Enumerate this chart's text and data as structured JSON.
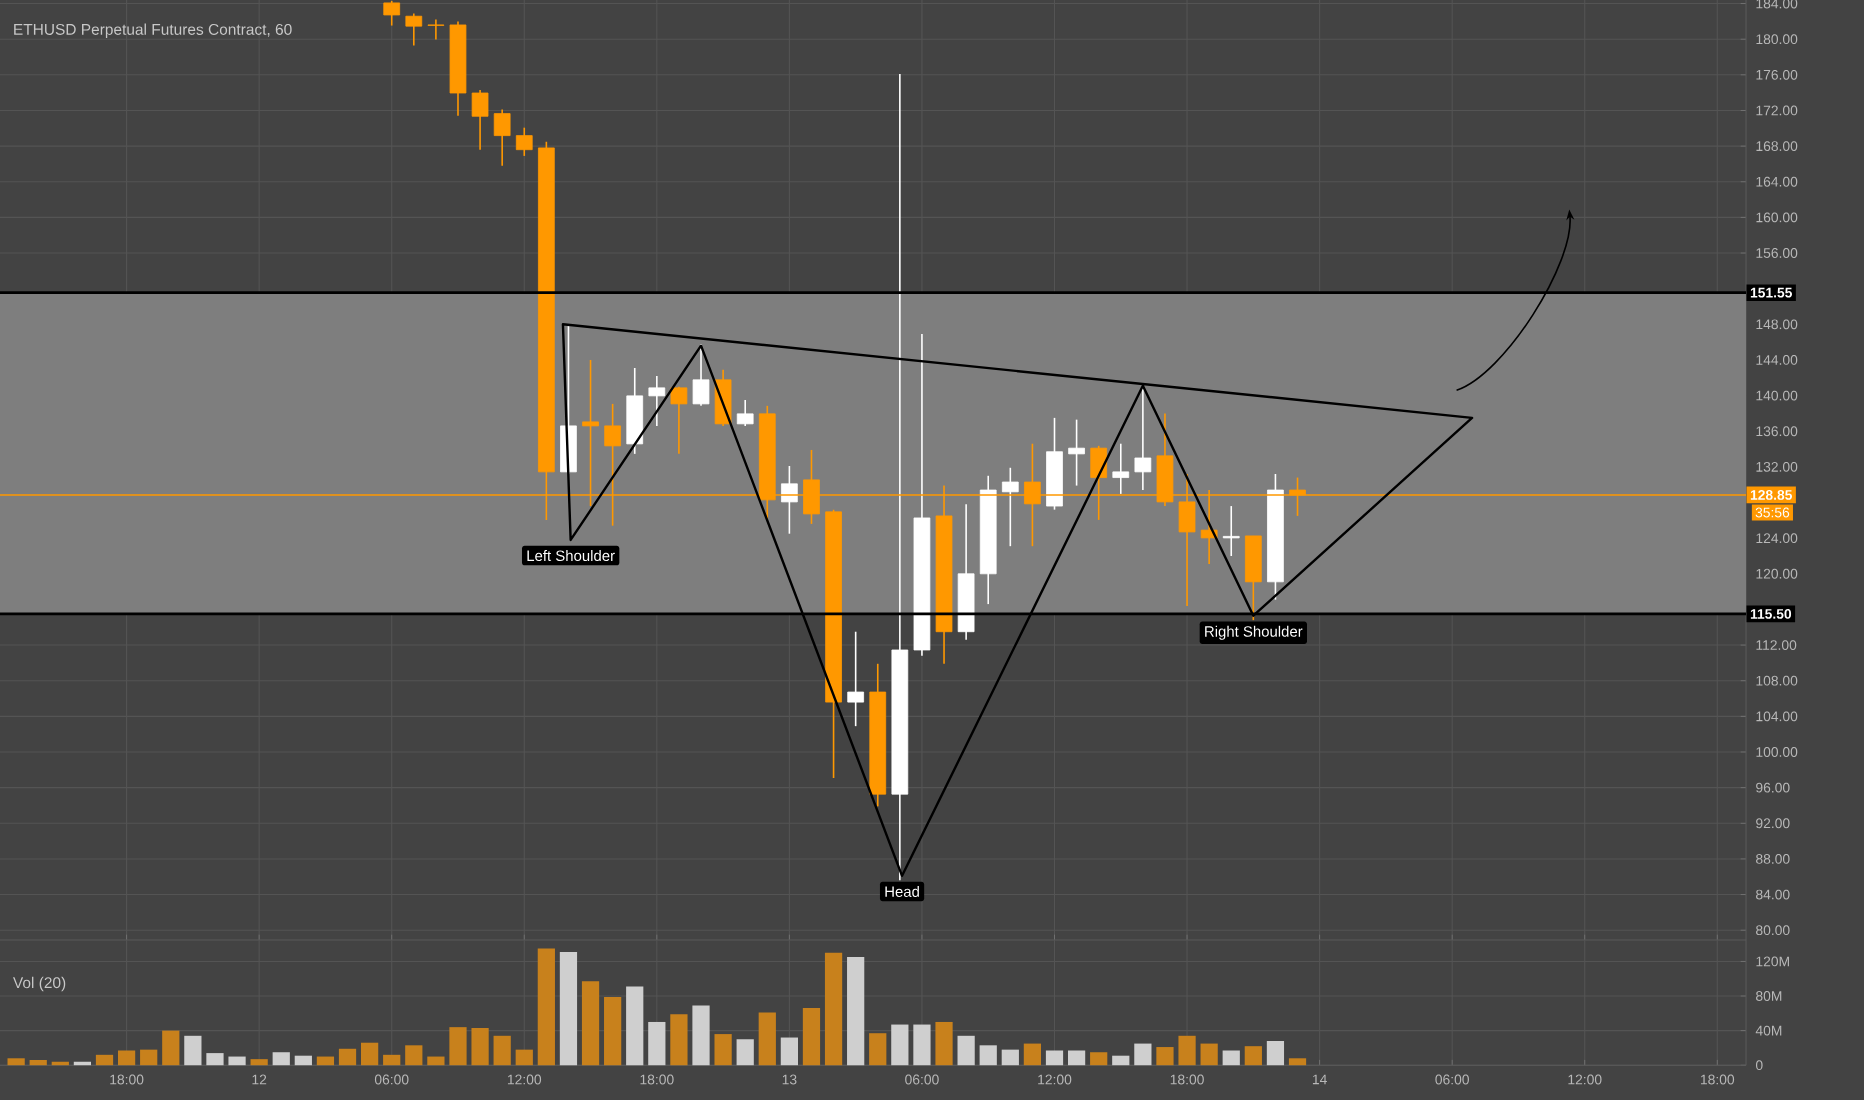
{
  "chart_data": [
    {
      "type": "candlestick",
      "title": "ETHUSD Perpetual Futures Contract, 60",
      "tick_labels": "y",
      "grid": true,
      "categories": [
        null,
        null,
        null,
        null,
        null,
        null,
        null,
        null,
        null,
        null,
        null,
        null,
        null,
        null,
        null,
        null,
        null,
        null,
        null,
        null,
        null,
        null,
        null,
        null,
        null,
        null,
        null,
        null,
        null,
        null,
        null,
        null,
        null,
        null,
        null,
        null,
        null,
        null,
        null,
        null,
        null,
        null,
        null,
        null,
        null,
        null,
        null,
        null,
        null,
        null,
        null,
        null,
        null,
        null,
        null,
        null,
        null,
        null,
        null,
        null,
        null,
        null,
        null,
        null,
        null,
        null,
        null,
        null,
        null,
        null,
        null,
        null,
        null,
        null,
        null,
        null,
        null,
        null,
        null
      ],
      "ohlc": [
        null,
        null,
        null,
        null,
        null,
        null,
        null,
        null,
        null,
        null,
        null,
        null,
        null,
        null,
        null,
        null,
        null,
        [
          184.07,
          184.3,
          181.53,
          182.72
        ],
        [
          182.58,
          182.88,
          179.28,
          181.46
        ],
        [
          181.6,
          182.2,
          179.96,
          181.55
        ],
        [
          181.6,
          181.98,
          171.42,
          173.96
        ],
        [
          173.96,
          174.3,
          167.6,
          171.35
        ],
        [
          171.65,
          172.1,
          165.8,
          169.18
        ],
        [
          169.18,
          170.07,
          166.9,
          167.6
        ],
        [
          167.8,
          168.5,
          126.05,
          131.44
        ],
        [
          131.44,
          147.8,
          131.2,
          136.6
        ],
        [
          137.05,
          144.0,
          127.6,
          136.6
        ],
        [
          136.6,
          139.07,
          125.4,
          134.36
        ],
        [
          134.58,
          143.1,
          133.46,
          139.97
        ],
        [
          139.97,
          142.2,
          136.6,
          140.87
        ],
        [
          140.87,
          141.0,
          133.46,
          139.07
        ],
        [
          139.07,
          145.8,
          138.85,
          141.77
        ],
        [
          141.77,
          142.9,
          136.6,
          136.83
        ],
        [
          136.83,
          139.5,
          136.6,
          137.95
        ],
        [
          137.95,
          138.85,
          126.05,
          128.3
        ],
        [
          128.07,
          132.1,
          124.5,
          130.1
        ],
        [
          130.54,
          133.9,
          125.6,
          126.72
        ],
        [
          126.95,
          127.2,
          97.07,
          105.6
        ],
        [
          105.6,
          113.5,
          102.9,
          106.73
        ],
        [
          106.73,
          109.9,
          93.9,
          95.27
        ],
        [
          95.27,
          176.1,
          85.6,
          111.45
        ],
        [
          111.45,
          146.9,
          110.8,
          126.27
        ],
        [
          126.5,
          129.9,
          109.9,
          113.5
        ],
        [
          113.5,
          127.8,
          112.6,
          120.0
        ],
        [
          120.0,
          131.0,
          116.6,
          129.4
        ],
        [
          129.2,
          131.9,
          123.1,
          130.3
        ],
        [
          130.3,
          134.6,
          123.1,
          127.85
        ],
        [
          127.6,
          137.5,
          127.2,
          133.7
        ],
        [
          133.46,
          137.3,
          129.9,
          134.1
        ],
        [
          134.1,
          134.36,
          126.05,
          130.8
        ],
        [
          130.8,
          134.6,
          128.97,
          131.44
        ],
        [
          131.44,
          141.1,
          129.4,
          133.0
        ],
        [
          133.24,
          138.0,
          127.6,
          128.07
        ],
        [
          128.07,
          131.2,
          116.4,
          124.7
        ],
        [
          124.9,
          129.4,
          121.1,
          124.03
        ],
        [
          124.03,
          127.6,
          122.0,
          124.2
        ],
        [
          124.25,
          124.25,
          114.8,
          119.1
        ],
        [
          119.1,
          131.2,
          117.1,
          129.4
        ],
        [
          129.4,
          130.8,
          126.5,
          128.85
        ],
        null,
        null,
        null,
        null,
        null,
        null,
        null,
        null,
        null,
        null,
        null,
        null,
        null,
        null,
        null,
        null,
        null,
        null,
        null,
        null
      ],
      "colors": [
        null,
        null,
        null,
        null,
        null,
        null,
        null,
        null,
        null,
        null,
        null,
        null,
        null,
        null,
        null,
        null,
        null,
        "#ff9800",
        "#ff9800",
        "#ff9800",
        "#ff9800",
        "#ff9800",
        "#ff9800",
        "#ff9800",
        "#ff9800",
        "#ffffff",
        "#ff9800",
        "#ff9800",
        "#ffffff",
        "#ffffff",
        "#ff9800",
        "#ffffff",
        "#ff9800",
        "#ffffff",
        "#ff9800",
        "#ffffff",
        "#ff9800",
        "#ff9800",
        "#ffffff",
        "#ff9800",
        "#ffffff",
        "#ffffff",
        "#ff9800",
        "#ffffff",
        "#ffffff",
        "#ffffff",
        "#ff9800",
        "#ffffff",
        "#ffffff",
        "#ff9800",
        "#ffffff",
        "#ffffff",
        "#ff9800",
        "#ff9800",
        "#ff9800",
        "#ffffff",
        "#ff9800",
        "#ffffff",
        "#ff9800",
        null,
        null,
        null,
        null,
        null,
        null,
        null,
        null,
        null,
        null,
        null,
        null,
        null,
        null,
        null,
        null,
        null,
        null,
        null,
        null
      ],
      "ylim": [
        78.9,
        184.4
      ],
      "yticks": [
        {
          "value": 80,
          "label": "80.00"
        },
        {
          "value": 84,
          "label": "84.00"
        },
        {
          "value": 88,
          "label": "88.00"
        },
        {
          "value": 92,
          "label": "92.00"
        },
        {
          "value": 96,
          "label": "96.00"
        },
        {
          "value": 100,
          "label": "100.00"
        },
        {
          "value": 104,
          "label": "104.00"
        },
        {
          "value": 108,
          "label": "108.00"
        },
        {
          "value": 112,
          "label": "112.00"
        },
        {
          "value": 120,
          "label": "120.00"
        },
        {
          "value": 124,
          "label": "124.00"
        },
        {
          "value": 132,
          "label": "132.00"
        },
        {
          "value": 136,
          "label": "136.00"
        },
        {
          "value": 140,
          "label": "140.00"
        },
        {
          "value": 144,
          "label": "144.00"
        },
        {
          "value": 148,
          "label": "148.00"
        },
        {
          "value": 156,
          "label": "156.00"
        },
        {
          "value": 160,
          "label": "160.00"
        },
        {
          "value": 164,
          "label": "164.00"
        },
        {
          "value": 168,
          "label": "168.00"
        },
        {
          "value": 172,
          "label": "172.00"
        },
        {
          "value": 176,
          "label": "176.00"
        },
        {
          "value": 180,
          "label": "180.00"
        },
        {
          "value": 184,
          "label": "184.00"
        }
      ],
      "bands": [
        {
          "axis": "y",
          "from": 115.5,
          "to": 151.55,
          "color": "#7e7e7e"
        }
      ],
      "ref_lines": [
        {
          "axis": "y",
          "value": 151.55,
          "label": "151.55",
          "color": "#000000"
        },
        {
          "axis": "y",
          "value": 115.5,
          "label": "115.50",
          "color": "#000000"
        },
        {
          "axis": "y",
          "value": 128.85,
          "label": "128.85",
          "color": "#ff9800"
        }
      ],
      "annotations": [
        "Left Shoulder",
        "Head",
        "Right Shoulder",
        "35:56"
      ]
    },
    {
      "type": "bar",
      "title": "Vol (20)",
      "grid": true,
      "categories": [
        null,
        null,
        null,
        null,
        null,
        "18:00",
        null,
        null,
        null,
        null,
        null,
        "12",
        null,
        null,
        null,
        null,
        null,
        "06:00",
        null,
        null,
        null,
        null,
        null,
        "12:00",
        null,
        null,
        null,
        null,
        null,
        "18:00",
        null,
        null,
        null,
        null,
        null,
        "13",
        null,
        null,
        null,
        null,
        null,
        "06:00",
        null,
        null,
        null,
        null,
        null,
        "12:00",
        null,
        null,
        null,
        null,
        null,
        "18:00",
        null,
        null,
        null,
        null,
        null,
        "14",
        null,
        null,
        null,
        null,
        null,
        "06:00",
        null,
        null,
        null,
        null,
        null,
        "12:00",
        null,
        null,
        null,
        null,
        null,
        "18:00",
        null
      ],
      "values": [
        8,
        6,
        4,
        4,
        12,
        17,
        18,
        40,
        34,
        14,
        10,
        7,
        15,
        11,
        10,
        19,
        26,
        12,
        23,
        10,
        44,
        43,
        34,
        18,
        135,
        131,
        97,
        79,
        91,
        50,
        59,
        69,
        36,
        30,
        61,
        32,
        66,
        130,
        125,
        37,
        47,
        47,
        50,
        34,
        23,
        18,
        25,
        17,
        17,
        15,
        11,
        25,
        21,
        34,
        25,
        17,
        22,
        28,
        8,
        null,
        null,
        null,
        null,
        null,
        null,
        null,
        null,
        null,
        null,
        null,
        null,
        null,
        null,
        null,
        null,
        null,
        null,
        null,
        null
      ],
      "colors": [
        "#c8811c",
        "#c8811c",
        "#c8811c",
        "#cfcfcf",
        "#c8811c",
        "#c8811c",
        "#c8811c",
        "#c8811c",
        "#cfcfcf",
        "#cfcfcf",
        "#cfcfcf",
        "#c8811c",
        "#cfcfcf",
        "#cfcfcf",
        "#c8811c",
        "#c8811c",
        "#c8811c",
        "#c8811c",
        "#c8811c",
        "#c8811c",
        "#c8811c",
        "#c8811c",
        "#c8811c",
        "#c8811c",
        "#c8811c",
        "#cfcfcf",
        "#c8811c",
        "#c8811c",
        "#cfcfcf",
        "#cfcfcf",
        "#c8811c",
        "#cfcfcf",
        "#c8811c",
        "#cfcfcf",
        "#c8811c",
        "#cfcfcf",
        "#c8811c",
        "#c8811c",
        "#cfcfcf",
        "#c8811c",
        "#cfcfcf",
        "#cfcfcf",
        "#c8811c",
        "#cfcfcf",
        "#cfcfcf",
        "#cfcfcf",
        "#c8811c",
        "#cfcfcf",
        "#cfcfcf",
        "#c8811c",
        "#cfcfcf",
        "#cfcfcf",
        "#c8811c",
        "#c8811c",
        "#c8811c",
        "#cfcfcf",
        "#c8811c",
        "#cfcfcf",
        "#c8811c",
        null,
        null,
        null,
        null,
        null,
        null,
        null,
        null,
        null,
        null,
        null,
        null,
        null,
        null,
        null,
        null,
        null,
        null,
        null,
        null
      ],
      "ylim": [
        0,
        145
      ],
      "yticks": [
        {
          "value": 0,
          "label": "0"
        },
        {
          "value": 40,
          "label": "40M"
        },
        {
          "value": 80,
          "label": "80M"
        },
        {
          "value": 120,
          "label": "120M"
        }
      ]
    }
  ]
}
